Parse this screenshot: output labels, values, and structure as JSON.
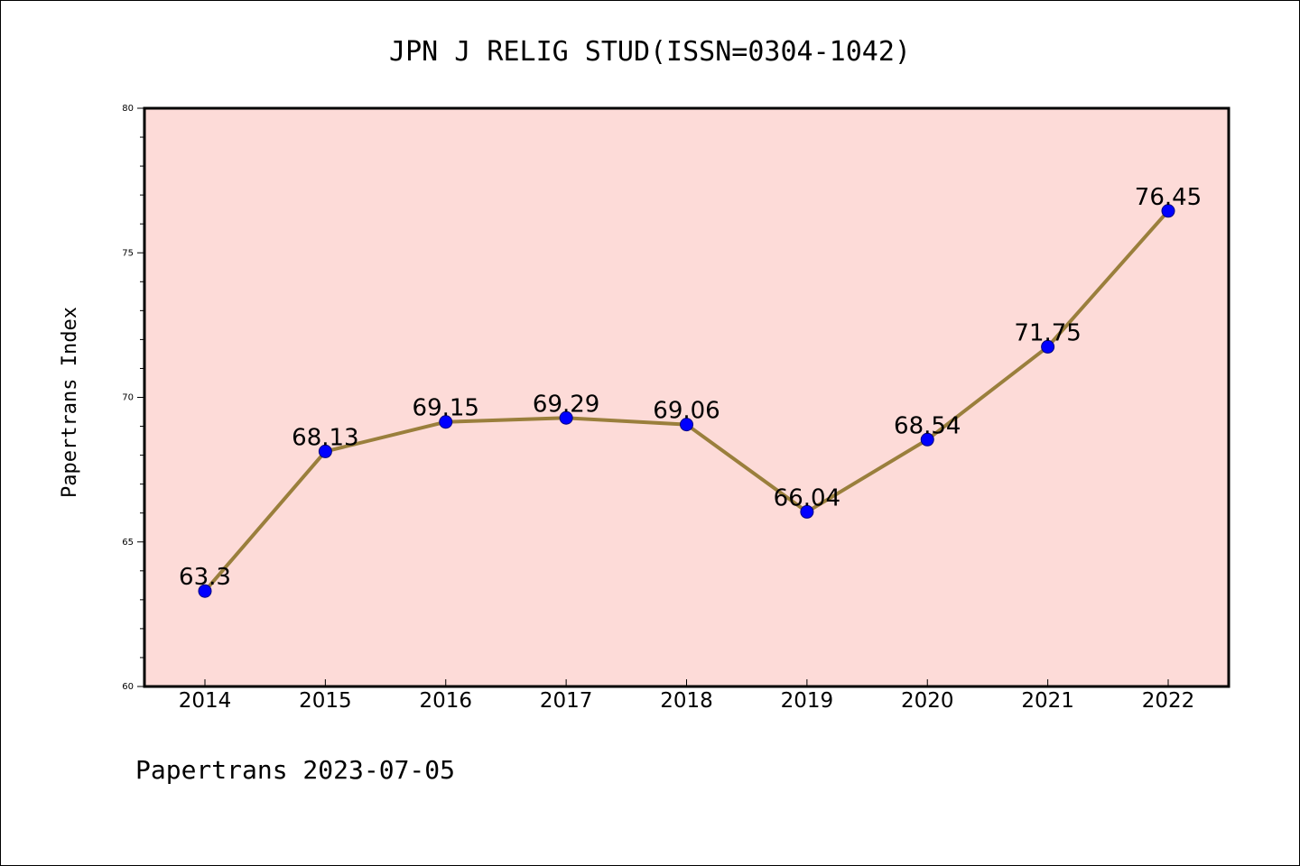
{
  "chart_data": {
    "type": "line",
    "title": "JPN J RELIG STUD(ISSN=0304-1042)",
    "xlabel": "",
    "ylabel": "Papertrans Index",
    "categories": [
      "2014",
      "2015",
      "2016",
      "2017",
      "2018",
      "2019",
      "2020",
      "2021",
      "2022"
    ],
    "series": [
      {
        "values": [
          63.3,
          68.13,
          69.15,
          69.29,
          69.06,
          66.04,
          68.54,
          71.75,
          76.45
        ],
        "labels": [
          "63.3",
          "68.13",
          "69.15",
          "69.29",
          "69.06",
          "66.04",
          "68.54",
          "71.75",
          "76.45"
        ]
      }
    ],
    "ylim": [
      60,
      80
    ],
    "yticks": [
      "60",
      "65",
      "70",
      "75",
      "80"
    ],
    "grid": false,
    "legend": "none",
    "footer": "Papertrans 2023-07-05",
    "colors": {
      "plot_background": "#fddbd8",
      "line": "#9a7f3c",
      "marker": "#0000ff",
      "axis": "#000000"
    }
  }
}
